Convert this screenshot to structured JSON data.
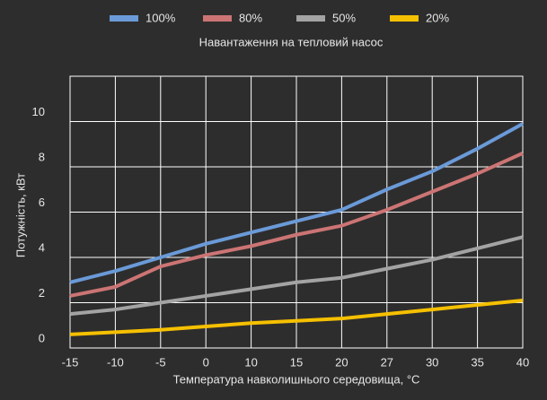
{
  "chart_data": {
    "type": "line",
    "legend_title": "Навантаження на тепловий насос",
    "x_label": "Температура навколишнього середовища, °C",
    "y_label": "Потужність, кВт",
    "categories": [
      "-15",
      "-10",
      "-5",
      "0",
      "10",
      "15",
      "20",
      "27",
      "30",
      "35",
      "40"
    ],
    "series": [
      {
        "name": "100%",
        "color": "#6a9ad8",
        "values": [
          2.9,
          3.4,
          4.0,
          4.6,
          5.1,
          5.6,
          6.1,
          7.0,
          7.8,
          8.8,
          9.9
        ]
      },
      {
        "name": "80%",
        "color": "#cc7474",
        "values": [
          2.3,
          2.7,
          3.6,
          4.1,
          4.5,
          5.0,
          5.4,
          6.1,
          6.9,
          7.7,
          8.6
        ]
      },
      {
        "name": "50%",
        "color": "#a3a3a3",
        "values": [
          1.5,
          1.7,
          2.0,
          2.3,
          2.6,
          2.9,
          3.1,
          3.5,
          3.9,
          4.4,
          4.9
        ]
      },
      {
        "name": "20%",
        "color": "#f5c000",
        "values": [
          0.6,
          0.7,
          0.8,
          0.95,
          1.1,
          1.2,
          1.3,
          1.5,
          1.7,
          1.9,
          2.1
        ]
      }
    ],
    "ylim": [
      0,
      12
    ],
    "yticks": [
      0,
      2,
      4,
      6,
      8,
      10
    ],
    "grid": true,
    "legend": "top"
  }
}
